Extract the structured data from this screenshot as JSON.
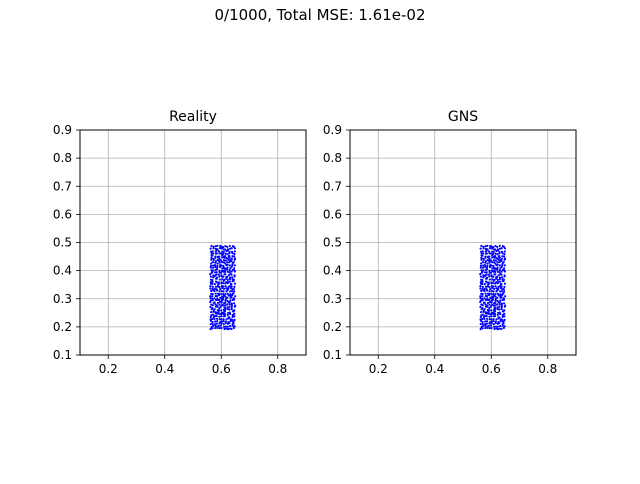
{
  "figure": {
    "suptitle": "0/1000, Total MSE: 1.61e-02"
  },
  "colors": {
    "particles": "#0000ff",
    "grid": "#b0b0b0",
    "axes": "#000000",
    "background": "#ffffff"
  },
  "chart_data": [
    {
      "type": "scatter",
      "title": "Reality",
      "xlim": [
        0.1,
        0.9
      ],
      "ylim": [
        0.1,
        0.9
      ],
      "xticks": [
        "0.2",
        "0.4",
        "0.6",
        "0.8"
      ],
      "yticks": [
        "0.1",
        "0.2",
        "0.3",
        "0.4",
        "0.5",
        "0.6",
        "0.7",
        "0.8",
        "0.9"
      ],
      "grid": true,
      "particle_block": {
        "x_range": [
          0.56,
          0.65
        ],
        "y_range": [
          0.19,
          0.49
        ],
        "columns": 12,
        "rows": 36
      }
    },
    {
      "type": "scatter",
      "title": "GNS",
      "xlim": [
        0.1,
        0.9
      ],
      "ylim": [
        0.1,
        0.9
      ],
      "xticks": [
        "0.2",
        "0.4",
        "0.6",
        "0.8"
      ],
      "yticks": [
        "0.1",
        "0.2",
        "0.3",
        "0.4",
        "0.5",
        "0.6",
        "0.7",
        "0.8",
        "0.9"
      ],
      "grid": true,
      "particle_block": {
        "x_range": [
          0.56,
          0.65
        ],
        "y_range": [
          0.19,
          0.49
        ],
        "columns": 12,
        "rows": 36
      }
    }
  ]
}
